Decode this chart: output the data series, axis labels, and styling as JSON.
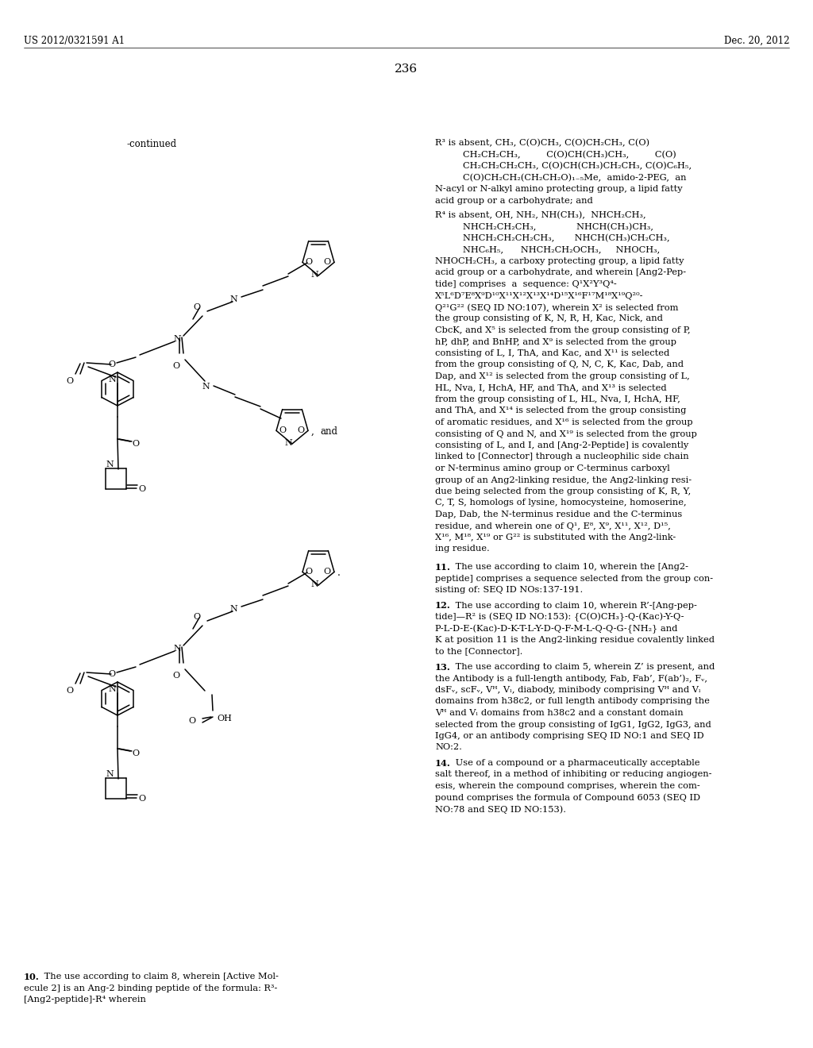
{
  "bg": "#ffffff",
  "header_left": "US 2012/0321591 A1",
  "header_right": "Dec. 20, 2012",
  "page_num": "236",
  "continued": "-continued",
  "and_label": "and",
  "claim10": "10. The use according to claim 8, wherein [Active Mol-",
  "claim10b": "ecule 2] is an Ang-2 binding peptide of the formula: R³-",
  "claim10c": "[Ang2-peptide]-R⁴ wherein"
}
